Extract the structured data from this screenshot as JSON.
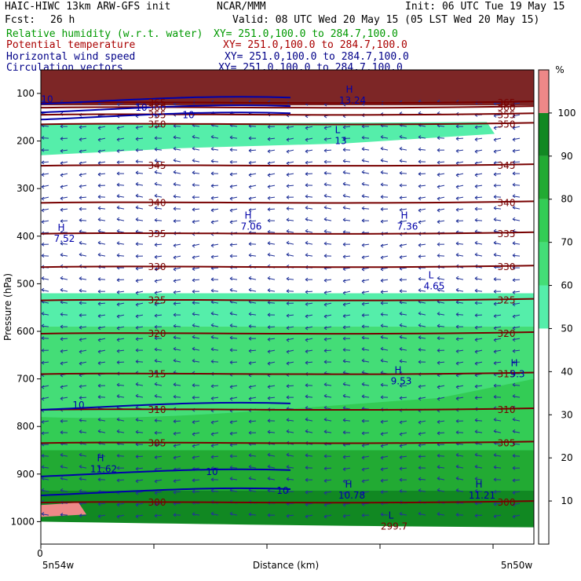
{
  "header": {
    "left_line1": "HAIC-HIWC 13km ARW-GFS init",
    "center_line1": "NCAR/MMM",
    "right_line1": "Init: 06 UTC Tue 19 May 15",
    "left_line2": "Fcst:",
    "fcst_value": "26 h",
    "right_line2": "Valid: 08 UTC Wed 20 May 15 (05 LST Wed 20 May 15)"
  },
  "fields": [
    {
      "name": "Relative humidity (w.r.t. water)",
      "xy": "XY= 251.0,100.0 to 284.7,100.0",
      "color": "#009900"
    },
    {
      "name": "Potential temperature",
      "xy": "XY= 251.0,100.0 to 284.7,100.0",
      "color": "#aa0000"
    },
    {
      "name": "Horizontal wind speed",
      "xy": "XY= 251.0,100.0 to 284.7,100.0",
      "color": "#000088"
    },
    {
      "name": "Circulation vectors",
      "xy": "XY= 251.0,100.0 to 284.7,100.0",
      "color": "#000088"
    }
  ],
  "chart_data": {
    "type": "heatmap",
    "ylabel": "Pressure (hPa)",
    "xlabel": "Distance (km)",
    "ylim": [
      1050,
      50
    ],
    "y_ticks": [
      100,
      200,
      300,
      400,
      500,
      600,
      700,
      800,
      900,
      1000
    ],
    "x_tick_label": "0",
    "x_left_label": "5n54w",
    "x_right_label": "5n50w",
    "colorbar": {
      "unit": "%",
      "ticks": [
        10,
        20,
        30,
        40,
        50,
        60,
        70,
        80,
        90,
        100
      ],
      "bins": [
        {
          "from": 0,
          "to": 50,
          "color": "#ffffff"
        },
        {
          "from": 50,
          "to": 60,
          "color": "#55eeaa"
        },
        {
          "from": 60,
          "to": 70,
          "color": "#44dd77"
        },
        {
          "from": 70,
          "to": 80,
          "color": "#33cc55"
        },
        {
          "from": 80,
          "to": 90,
          "color": "#22aa33"
        },
        {
          "from": 90,
          "to": 100,
          "color": "#118822"
        },
        {
          "from": 100,
          "to": 110,
          "color": "#ee8888"
        }
      ]
    },
    "theta_contours": [
      {
        "label": "300",
        "pressure": 960
      },
      {
        "label": "305",
        "pressure": 835
      },
      {
        "label": "310",
        "pressure": 765
      },
      {
        "label": "315",
        "pressure": 690
      },
      {
        "label": "320",
        "pressure": 605
      },
      {
        "label": "325",
        "pressure": 535
      },
      {
        "label": "330",
        "pressure": 465
      },
      {
        "label": "335",
        "pressure": 395
      },
      {
        "label": "340",
        "pressure": 330
      },
      {
        "label": "345",
        "pressure": 252
      },
      {
        "label": "350",
        "pressure": 165
      },
      {
        "label": "355",
        "pressure": 145
      },
      {
        "label": "360",
        "pressure": 130
      },
      {
        "label": "365",
        "pressure": 120
      }
    ],
    "wind_labels": [
      {
        "text": "10",
        "pressure": 755
      },
      {
        "text": "10",
        "pressure": 895
      },
      {
        "text": "10",
        "pressure": 935
      },
      {
        "text": "10",
        "pressure": 130
      },
      {
        "text": "10",
        "pressure": 145
      },
      {
        "text": "10",
        "pressure": 112
      }
    ],
    "extrema": [
      {
        "type": "L",
        "value": "13",
        "pressure": 190
      },
      {
        "type": "H",
        "value": "13.24",
        "pressure": 105
      },
      {
        "type": "H",
        "value": "7.52",
        "pressure": 395
      },
      {
        "type": "H",
        "value": "7.06",
        "pressure": 370
      },
      {
        "type": "H",
        "value": "7.36",
        "pressure": 370
      },
      {
        "type": "L",
        "value": "4.65",
        "pressure": 495
      },
      {
        "type": "H",
        "value": "9.3",
        "pressure": 680
      },
      {
        "type": "H",
        "value": "9.53",
        "pressure": 695
      },
      {
        "type": "H",
        "value": "11.62",
        "pressure": 880
      },
      {
        "type": "H",
        "value": "10.78",
        "pressure": 935
      },
      {
        "type": "H",
        "value": "11.21",
        "pressure": 935
      },
      {
        "type": "L",
        "value": "299.7",
        "pressure": 1000
      }
    ]
  }
}
